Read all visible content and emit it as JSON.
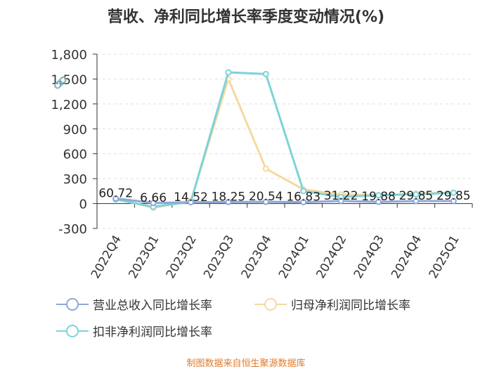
{
  "chart_data": {
    "type": "line",
    "title": "营收、净利同比增长率季度变动情况(%)",
    "categories": [
      "2022Q4",
      "2023Q1",
      "2023Q2",
      "2023Q3",
      "2023Q4",
      "2024Q1",
      "2024Q2",
      "2024Q3",
      "2024Q4",
      "2025Q1"
    ],
    "ylim": [
      -300,
      1800
    ],
    "yticks": [
      "1,800",
      "1,500",
      "1,200",
      "900",
      "600",
      "300",
      "0",
      "-300"
    ],
    "ytick_values": [
      1800,
      1500,
      1200,
      900,
      600,
      300,
      0,
      -300
    ],
    "grid": true,
    "legend_position": "bottom",
    "series": [
      {
        "name": "营业总收入同比增长率",
        "color": "#8fa8d8",
        "values": [
          60.72,
          6.66,
          14.52,
          18.25,
          20.54,
          16.83,
          31.22,
          19.88,
          29.85,
          29.85
        ]
      },
      {
        "name": "归母净利润同比增长率",
        "color": "#f5d9a0",
        "values": [
          55,
          -50,
          30,
          1500,
          420,
          170,
          110,
          100,
          120,
          130
        ]
      },
      {
        "name": "扣非净利润同比增长率",
        "color": "#7dd3d8",
        "values": [
          50,
          -40,
          20,
          1580,
          1560,
          150,
          80,
          100,
          110,
          130
        ]
      }
    ],
    "data_labels": [
      "60.72",
      "6.66",
      "14.52",
      "18.25",
      "20.54",
      "16.83",
      "31.22",
      "19.88",
      "29.85",
      "29.85"
    ]
  },
  "footer": {
    "source": "制图数据来自恒生聚源数据库"
  },
  "icons": {
    "watermark": "link-icon"
  }
}
